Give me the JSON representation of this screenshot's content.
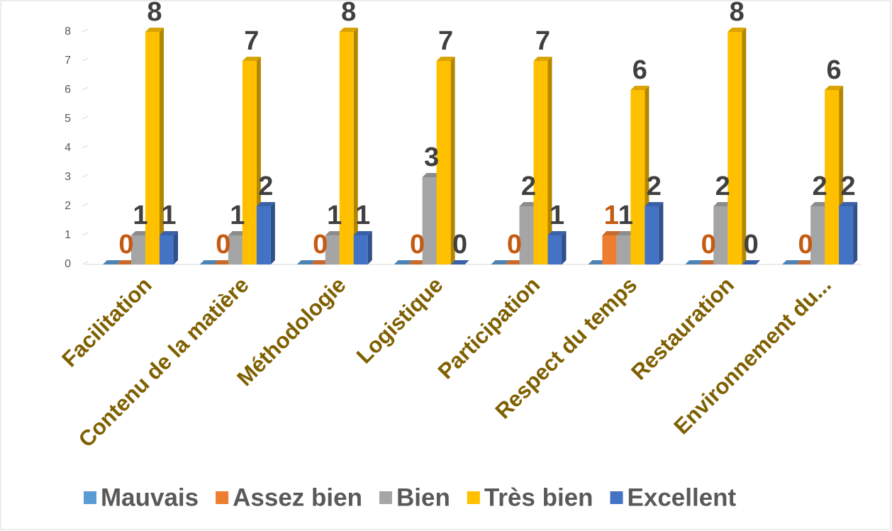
{
  "chart_data": {
    "type": "bar3d",
    "categories": [
      "Facilitation",
      "Contenu de la matière",
      "Méthodologie",
      "Logistique",
      "Participation",
      "Respect du temps",
      "Restauration",
      "Environnement du..."
    ],
    "series": [
      {
        "name": "Mauvais",
        "color": "#5b9bd5",
        "values": [
          0,
          0,
          0,
          0,
          0,
          0,
          0,
          0
        ],
        "show_labels": false
      },
      {
        "name": "Assez bien",
        "color": "#ed7d31",
        "values": [
          0,
          0,
          0,
          0,
          0,
          1,
          0,
          0
        ],
        "show_labels": true,
        "label_color": "#c55a11"
      },
      {
        "name": "Bien",
        "color": "#a5a5a5",
        "values": [
          1,
          1,
          1,
          3,
          2,
          1,
          2,
          2
        ],
        "show_labels": true,
        "label_color": "#404040"
      },
      {
        "name": "Très bien",
        "color": "#ffc000",
        "values": [
          8,
          7,
          8,
          7,
          7,
          6,
          8,
          6
        ],
        "show_labels": true,
        "label_color": "#404040"
      },
      {
        "name": "Excellent",
        "color": "#4472c4",
        "values": [
          1,
          2,
          1,
          0,
          1,
          2,
          0,
          2
        ],
        "show_labels": true,
        "label_color": "#404040"
      }
    ],
    "ylim": [
      0,
      8
    ],
    "yticks": [
      0,
      1,
      2,
      3,
      4,
      5,
      6,
      7,
      8
    ],
    "grid": false,
    "legend": "bottom",
    "category_label_color": "#7f6000"
  }
}
